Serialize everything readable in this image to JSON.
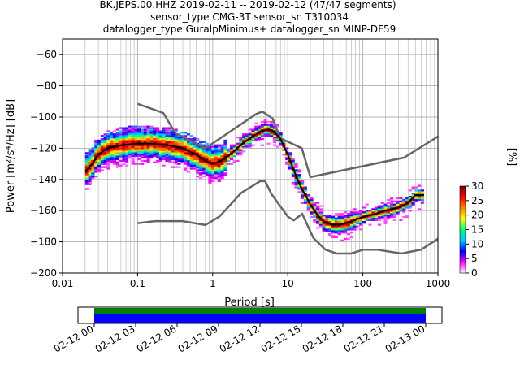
{
  "header": {
    "title_line1": "BK.JEPS.00.HHZ   2019-02-11 -- 2019-02-12  (47/47 segments)",
    "title_line2": "sensor_type CMG-3T sensor_sn T310034",
    "title_line3": "datalogger_type GuralpMinimus+ datalogger_sn MINP-DF59"
  },
  "chart_data": {
    "type": "heatmap",
    "xlabel": "Period [s]",
    "ylabel": "Power [m²/s⁴/Hz] [dB]",
    "x_scale": "log",
    "xlim": [
      0.01,
      1000
    ],
    "ylim": [
      -200,
      -50
    ],
    "x_ticks": [
      0.01,
      0.1,
      1,
      10,
      100,
      1000
    ],
    "x_tick_labels": [
      "0.01",
      "0.1",
      "1",
      "10",
      "100",
      "1000"
    ],
    "y_ticks": [
      -200,
      -180,
      -160,
      -140,
      -120,
      -100,
      -80,
      -60
    ],
    "y_tick_labels": [
      "−200",
      "−180",
      "−160",
      "−140",
      "−120",
      "−100",
      "−80",
      "−60"
    ],
    "grid": true,
    "colorbar": {
      "label": "[%]",
      "range": [
        0,
        30
      ],
      "ticks": [
        0,
        5,
        10,
        15,
        20,
        25,
        30
      ],
      "colors": [
        "#ffffff",
        "#ff00ff",
        "#0000ff",
        "#00c8ff",
        "#00ff80",
        "#ffff00",
        "#ff8000",
        "#ff0000",
        "#800000"
      ]
    },
    "mode_curve": {
      "x": [
        0.02,
        0.025,
        0.03,
        0.04,
        0.06,
        0.1,
        0.15,
        0.25,
        0.4,
        0.6,
        0.8,
        1.0,
        1.3,
        1.8,
        2.5,
        3.5,
        4.5,
        5.5,
        6.5,
        8,
        10,
        12,
        15,
        20,
        25,
        30,
        40,
        50,
        70,
        100,
        150,
        200,
        300,
        400,
        500,
        650
      ],
      "y": [
        -135,
        -130,
        -124,
        -120,
        -118,
        -117,
        -117,
        -118,
        -120,
        -124,
        -128,
        -130,
        -128,
        -123,
        -117,
        -112,
        -109,
        -108,
        -109,
        -114,
        -124,
        -134,
        -145,
        -156,
        -163,
        -167,
        -169,
        -169,
        -167,
        -164,
        -162,
        -160,
        -158,
        -155,
        -150,
        -150
      ]
    },
    "noise_models": {
      "high_model": {
        "x": [
          0.1,
          0.22,
          0.32,
          0.8,
          3.8,
          4.6,
          6.3,
          7.9,
          15.4,
          20,
          354.8,
          1000
        ],
        "y": [
          -91.5,
          -97.4,
          -110.5,
          -120,
          -98,
          -96.5,
          -101,
          -113.5,
          -120,
          -138.5,
          -126,
          -112.5
        ]
      },
      "low_model": {
        "x": [
          0.1,
          0.17,
          0.4,
          0.8,
          1.24,
          2.4,
          4.3,
          5,
          6,
          10,
          12,
          15.6,
          21.9,
          31.6,
          45,
          70,
          101,
          154,
          328,
          600,
          1000
        ],
        "y": [
          -168,
          -166.7,
          -166.7,
          -169.2,
          -163.7,
          -148.6,
          -141.1,
          -141.1,
          -149,
          -163.8,
          -166.2,
          -162.1,
          -177.5,
          -185,
          -187.5,
          -187.5,
          -185,
          -185,
          -187.5,
          -185,
          -178
        ]
      }
    },
    "time_axis": {
      "tick_labels": [
        "02-12 00",
        "02-12 03",
        "02-12 06",
        "02-12 09",
        "02-12 12",
        "02-12 15",
        "02-12 18",
        "02-12 21",
        "02-13 00"
      ],
      "coverage_label": "(47/47 segments)"
    }
  }
}
